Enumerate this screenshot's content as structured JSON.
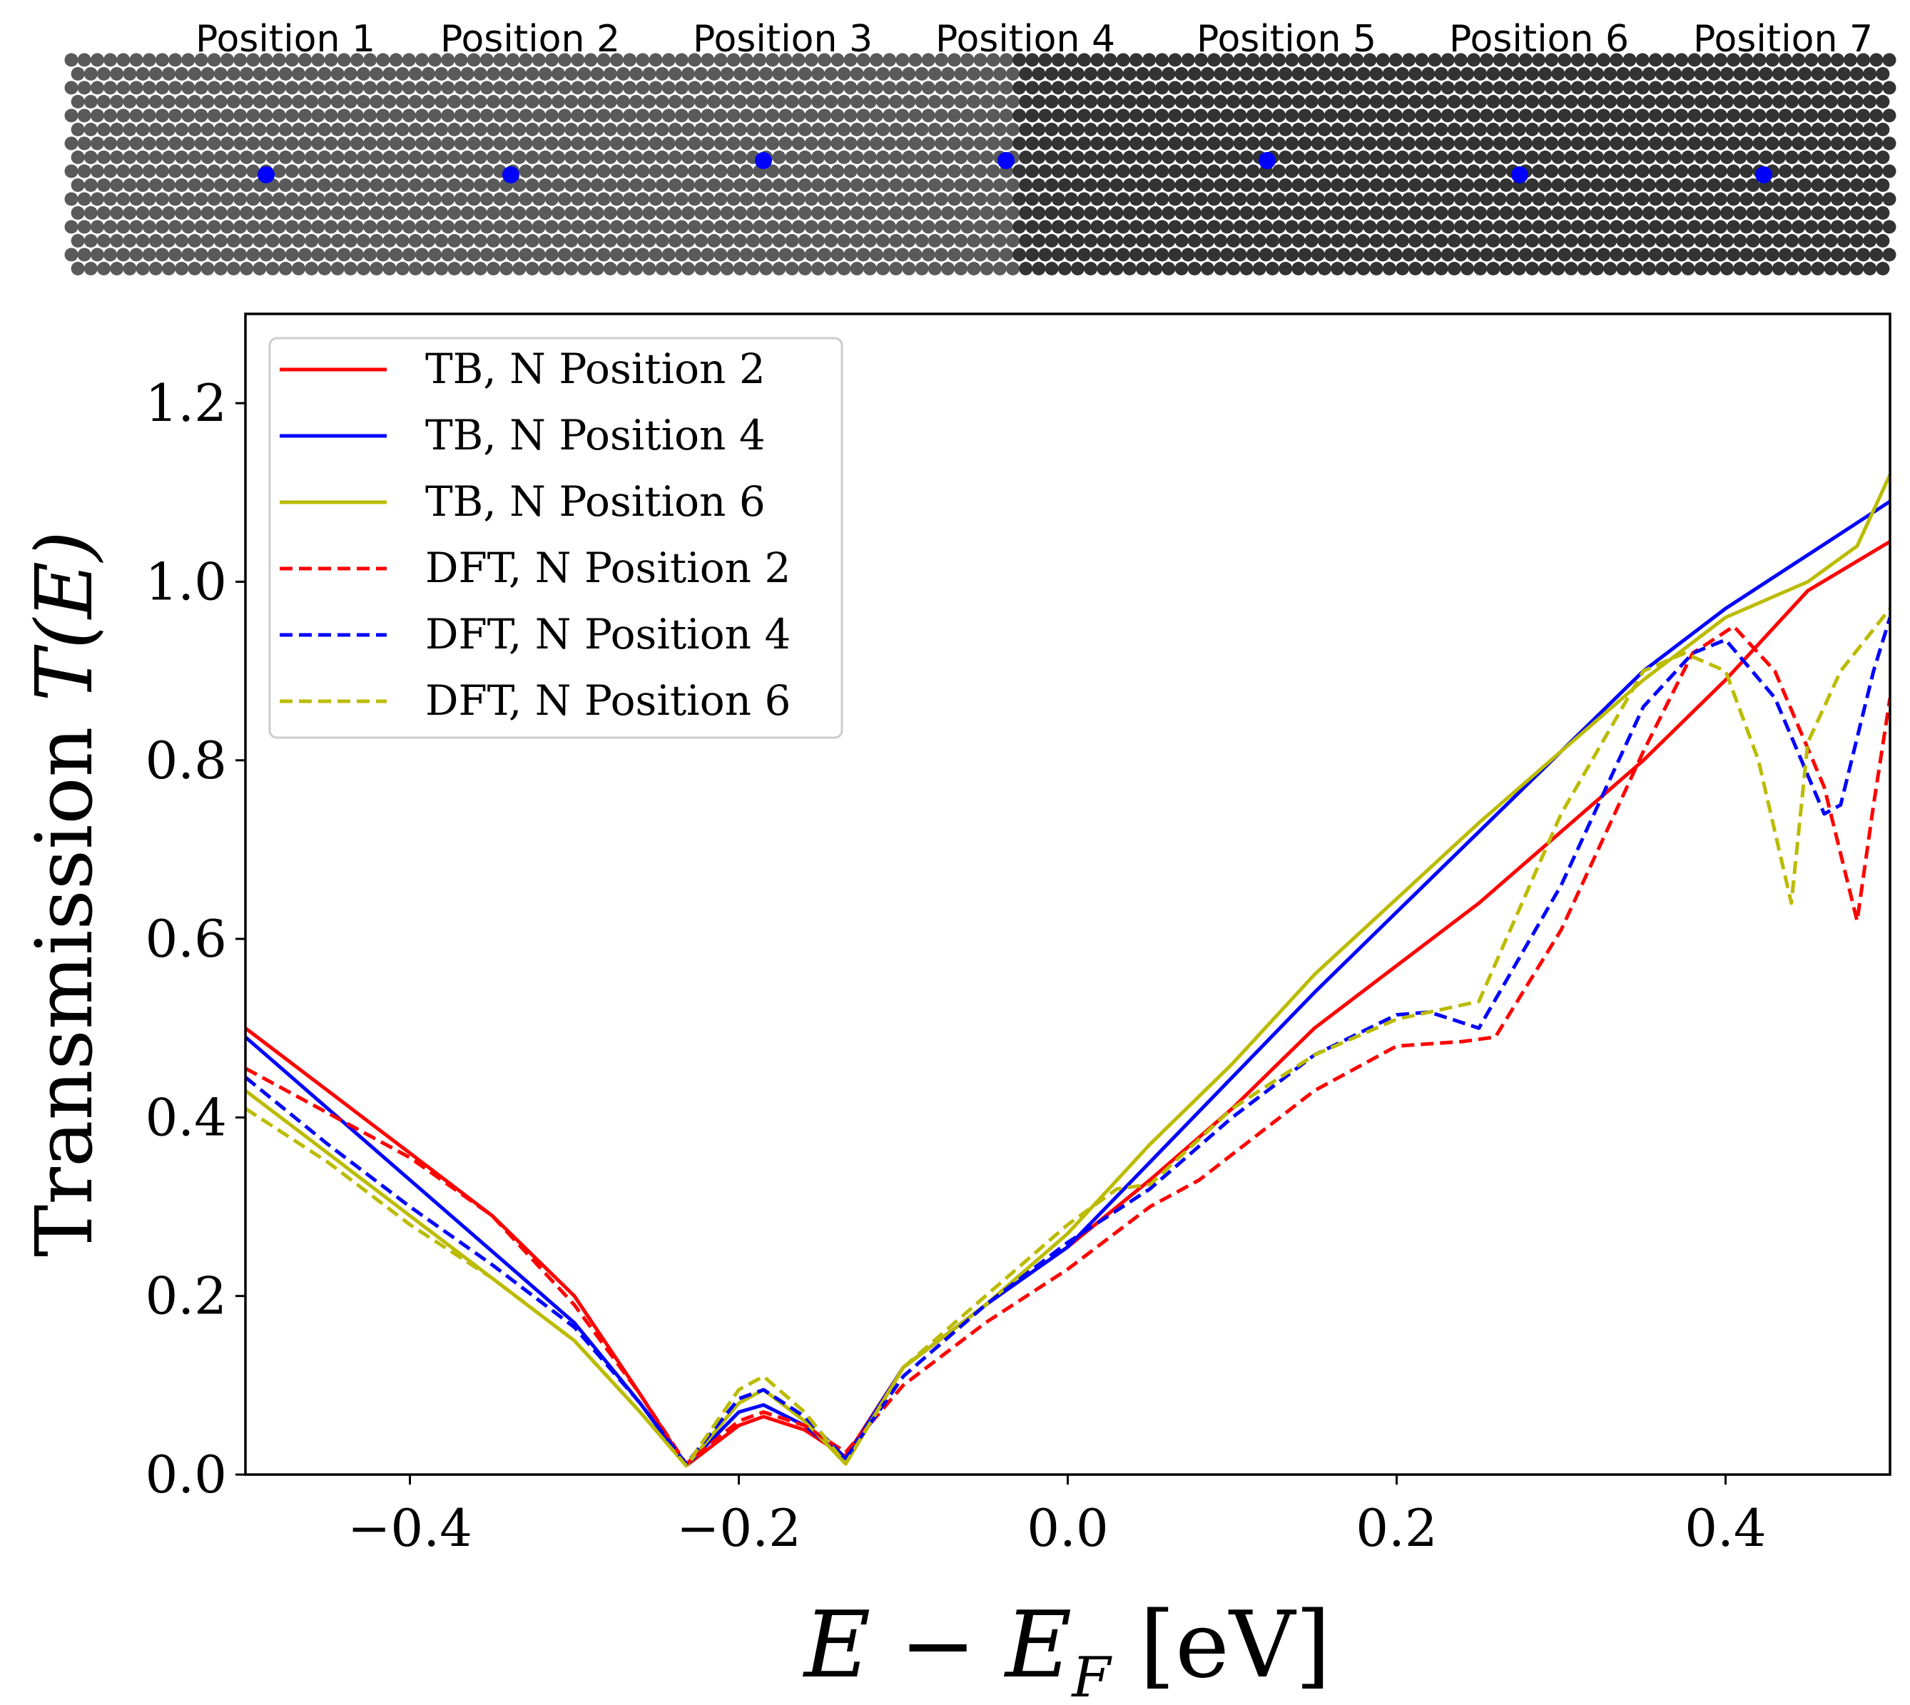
{
  "strip": {
    "labels": [
      "Position 1",
      "Position 2",
      "Position 3",
      "Position 4",
      "Position 5",
      "Position 6",
      "Position 7"
    ],
    "light_color": "#5a5a5a",
    "dark_color": "#333333",
    "marker_color": "#0000ff"
  },
  "chart_data": {
    "type": "line",
    "title": "",
    "xlabel": "E − E",
    "xlabel_sub": "F",
    "xlabel_unit": " [eV]",
    "ylabel_prefix": "Transmission ",
    "ylabel_math": "T(E)",
    "xlim": [
      -0.5,
      0.5
    ],
    "ylim": [
      0.0,
      1.3
    ],
    "xticks": [
      -0.4,
      -0.2,
      0.0,
      0.2,
      0.4
    ],
    "xtick_labels": [
      "−0.4",
      "−0.2",
      "0.0",
      "0.2",
      "0.4"
    ],
    "yticks": [
      0.0,
      0.2,
      0.4,
      0.6,
      0.8,
      1.0,
      1.2
    ],
    "ytick_labels": [
      "0.0",
      "0.2",
      "0.4",
      "0.6",
      "0.8",
      "1.0",
      "1.2"
    ],
    "legend_position": "top-left",
    "series": [
      {
        "name": "TB, N Position 2",
        "color": "#ff0000",
        "style": "solid",
        "x": [
          -0.5,
          -0.45,
          -0.4,
          -0.35,
          -0.3,
          -0.26,
          -0.232,
          -0.2,
          -0.185,
          -0.16,
          -0.135,
          -0.1,
          -0.05,
          0.0,
          0.05,
          0.1,
          0.15,
          0.2,
          0.25,
          0.3,
          0.35,
          0.4,
          0.45,
          0.5
        ],
        "y": [
          0.5,
          0.43,
          0.36,
          0.29,
          0.2,
          0.09,
          0.01,
          0.055,
          0.065,
          0.05,
          0.02,
          0.12,
          0.19,
          0.255,
          0.33,
          0.41,
          0.5,
          0.57,
          0.64,
          0.72,
          0.8,
          0.89,
          0.99,
          1.045
        ]
      },
      {
        "name": "TB, N Position 4",
        "color": "#0000ff",
        "style": "solid",
        "x": [
          -0.5,
          -0.45,
          -0.4,
          -0.35,
          -0.3,
          -0.26,
          -0.232,
          -0.2,
          -0.185,
          -0.16,
          -0.135,
          -0.1,
          -0.05,
          0.0,
          0.05,
          0.1,
          0.15,
          0.2,
          0.25,
          0.3,
          0.35,
          0.4,
          0.45,
          0.5
        ],
        "y": [
          0.49,
          0.41,
          0.33,
          0.25,
          0.17,
          0.08,
          0.01,
          0.07,
          0.078,
          0.055,
          0.018,
          0.12,
          0.19,
          0.255,
          0.35,
          0.445,
          0.54,
          0.63,
          0.72,
          0.81,
          0.9,
          0.97,
          1.03,
          1.09
        ]
      },
      {
        "name": "TB, N Position 6",
        "color": "#bbbb00",
        "style": "solid",
        "x": [
          -0.5,
          -0.45,
          -0.4,
          -0.35,
          -0.3,
          -0.26,
          -0.232,
          -0.2,
          -0.185,
          -0.16,
          -0.135,
          -0.1,
          -0.05,
          0.0,
          0.05,
          0.1,
          0.15,
          0.2,
          0.25,
          0.3,
          0.35,
          0.4,
          0.45,
          0.48,
          0.5
        ],
        "y": [
          0.43,
          0.36,
          0.29,
          0.22,
          0.15,
          0.07,
          0.01,
          0.08,
          0.095,
          0.06,
          0.012,
          0.12,
          0.19,
          0.27,
          0.37,
          0.46,
          0.56,
          0.645,
          0.73,
          0.81,
          0.89,
          0.96,
          1.0,
          1.04,
          1.12
        ]
      },
      {
        "name": "DFT, N Position 2",
        "color": "#ff0000",
        "style": "dashed",
        "x": [
          -0.5,
          -0.45,
          -0.4,
          -0.35,
          -0.3,
          -0.26,
          -0.232,
          -0.2,
          -0.185,
          -0.16,
          -0.135,
          -0.1,
          -0.05,
          0.0,
          0.05,
          0.08,
          0.15,
          0.2,
          0.24,
          0.26,
          0.3,
          0.35,
          0.38,
          0.405,
          0.43,
          0.46,
          0.48,
          0.49,
          0.5
        ],
        "y": [
          0.455,
          0.405,
          0.355,
          0.29,
          0.19,
          0.09,
          0.012,
          0.06,
          0.07,
          0.055,
          0.025,
          0.1,
          0.17,
          0.23,
          0.3,
          0.33,
          0.43,
          0.48,
          0.485,
          0.49,
          0.61,
          0.81,
          0.92,
          0.95,
          0.9,
          0.77,
          0.62,
          0.75,
          0.87
        ]
      },
      {
        "name": "DFT, N Position 4",
        "color": "#0000ff",
        "style": "dashed",
        "x": [
          -0.5,
          -0.45,
          -0.4,
          -0.35,
          -0.3,
          -0.26,
          -0.232,
          -0.2,
          -0.185,
          -0.16,
          -0.135,
          -0.1,
          -0.05,
          0.0,
          0.05,
          0.1,
          0.15,
          0.2,
          0.22,
          0.25,
          0.3,
          0.35,
          0.38,
          0.4,
          0.43,
          0.46,
          0.47,
          0.49,
          0.5
        ],
        "y": [
          0.445,
          0.37,
          0.3,
          0.235,
          0.165,
          0.08,
          0.012,
          0.085,
          0.095,
          0.065,
          0.018,
          0.11,
          0.19,
          0.26,
          0.32,
          0.4,
          0.47,
          0.515,
          0.518,
          0.5,
          0.66,
          0.86,
          0.92,
          0.935,
          0.87,
          0.74,
          0.75,
          0.9,
          0.96
        ]
      },
      {
        "name": "DFT, N Position 6",
        "color": "#bbbb00",
        "style": "dashed",
        "x": [
          -0.5,
          -0.45,
          -0.4,
          -0.35,
          -0.3,
          -0.26,
          -0.232,
          -0.2,
          -0.185,
          -0.16,
          -0.135,
          -0.1,
          -0.05,
          0.0,
          0.03,
          0.05,
          0.1,
          0.15,
          0.2,
          0.25,
          0.3,
          0.35,
          0.375,
          0.4,
          0.42,
          0.44,
          0.45,
          0.47,
          0.5
        ],
        "y": [
          0.41,
          0.35,
          0.28,
          0.22,
          0.15,
          0.07,
          0.01,
          0.095,
          0.11,
          0.07,
          0.012,
          0.12,
          0.2,
          0.28,
          0.32,
          0.325,
          0.41,
          0.47,
          0.51,
          0.53,
          0.74,
          0.9,
          0.92,
          0.9,
          0.8,
          0.64,
          0.82,
          0.9,
          0.97
        ]
      }
    ]
  }
}
